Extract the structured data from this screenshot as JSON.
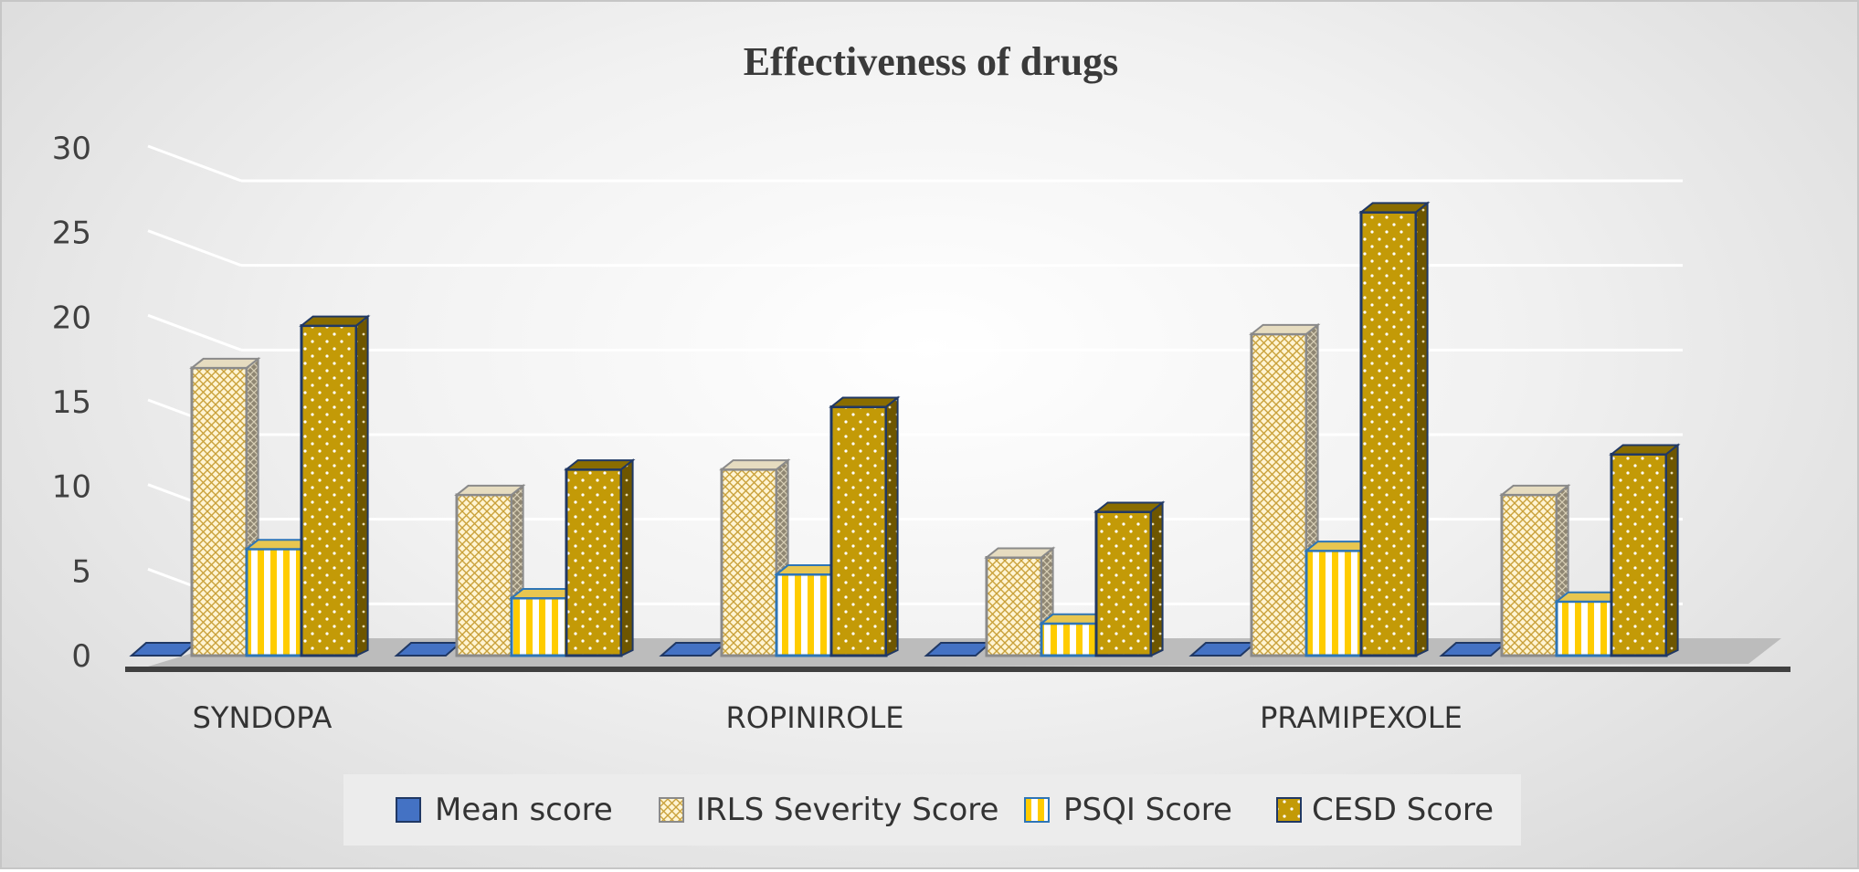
{
  "chart_data": {
    "type": "bar",
    "title": "Effectiveness of drugs",
    "xlabel": "",
    "ylabel": "",
    "ylim": [
      0,
      30
    ],
    "yticks": [
      0,
      5,
      10,
      15,
      20,
      25,
      30
    ],
    "categories": [
      "SYNDOPA",
      "",
      "ROPINIROLE",
      "",
      "PRAMIPEXOLE",
      ""
    ],
    "series": [
      {
        "name": "Mean score",
        "values": [
          0,
          0,
          0,
          0,
          0,
          0
        ]
      },
      {
        "name": "IRLS Severity Score",
        "values": [
          17,
          9.5,
          11,
          5.8,
          19,
          9.5
        ]
      },
      {
        "name": "PSQI Score",
        "values": [
          6.3,
          3.4,
          4.8,
          1.9,
          6.2,
          3.2
        ]
      },
      {
        "name": "CESD Score",
        "values": [
          19.5,
          11,
          14.7,
          8.5,
          26.2,
          11.9
        ]
      }
    ],
    "legend": "bottom",
    "grid": true
  },
  "colors": {
    "mean": "#4472c4",
    "irls": "#fff2cc",
    "irls_pattern": "#c9a13a",
    "psqi": "#ffd21a",
    "cesd": "#c39a07",
    "outline": "#203864"
  }
}
